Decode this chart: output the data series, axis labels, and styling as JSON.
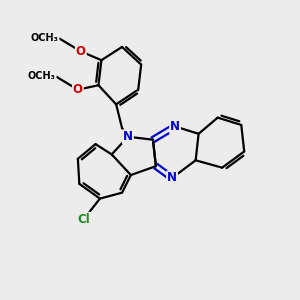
{
  "background_color": "#ececec",
  "bond_color": "#000000",
  "nitrogen_color": "#0000cc",
  "oxygen_color": "#cc0000",
  "chlorine_color": "#008800",
  "line_width": 1.6,
  "font_size_atoms": 8.5,
  "fig_width": 3.0,
  "fig_height": 3.0,
  "xlim": [
    0,
    10
  ],
  "ylim": [
    0,
    10
  ]
}
